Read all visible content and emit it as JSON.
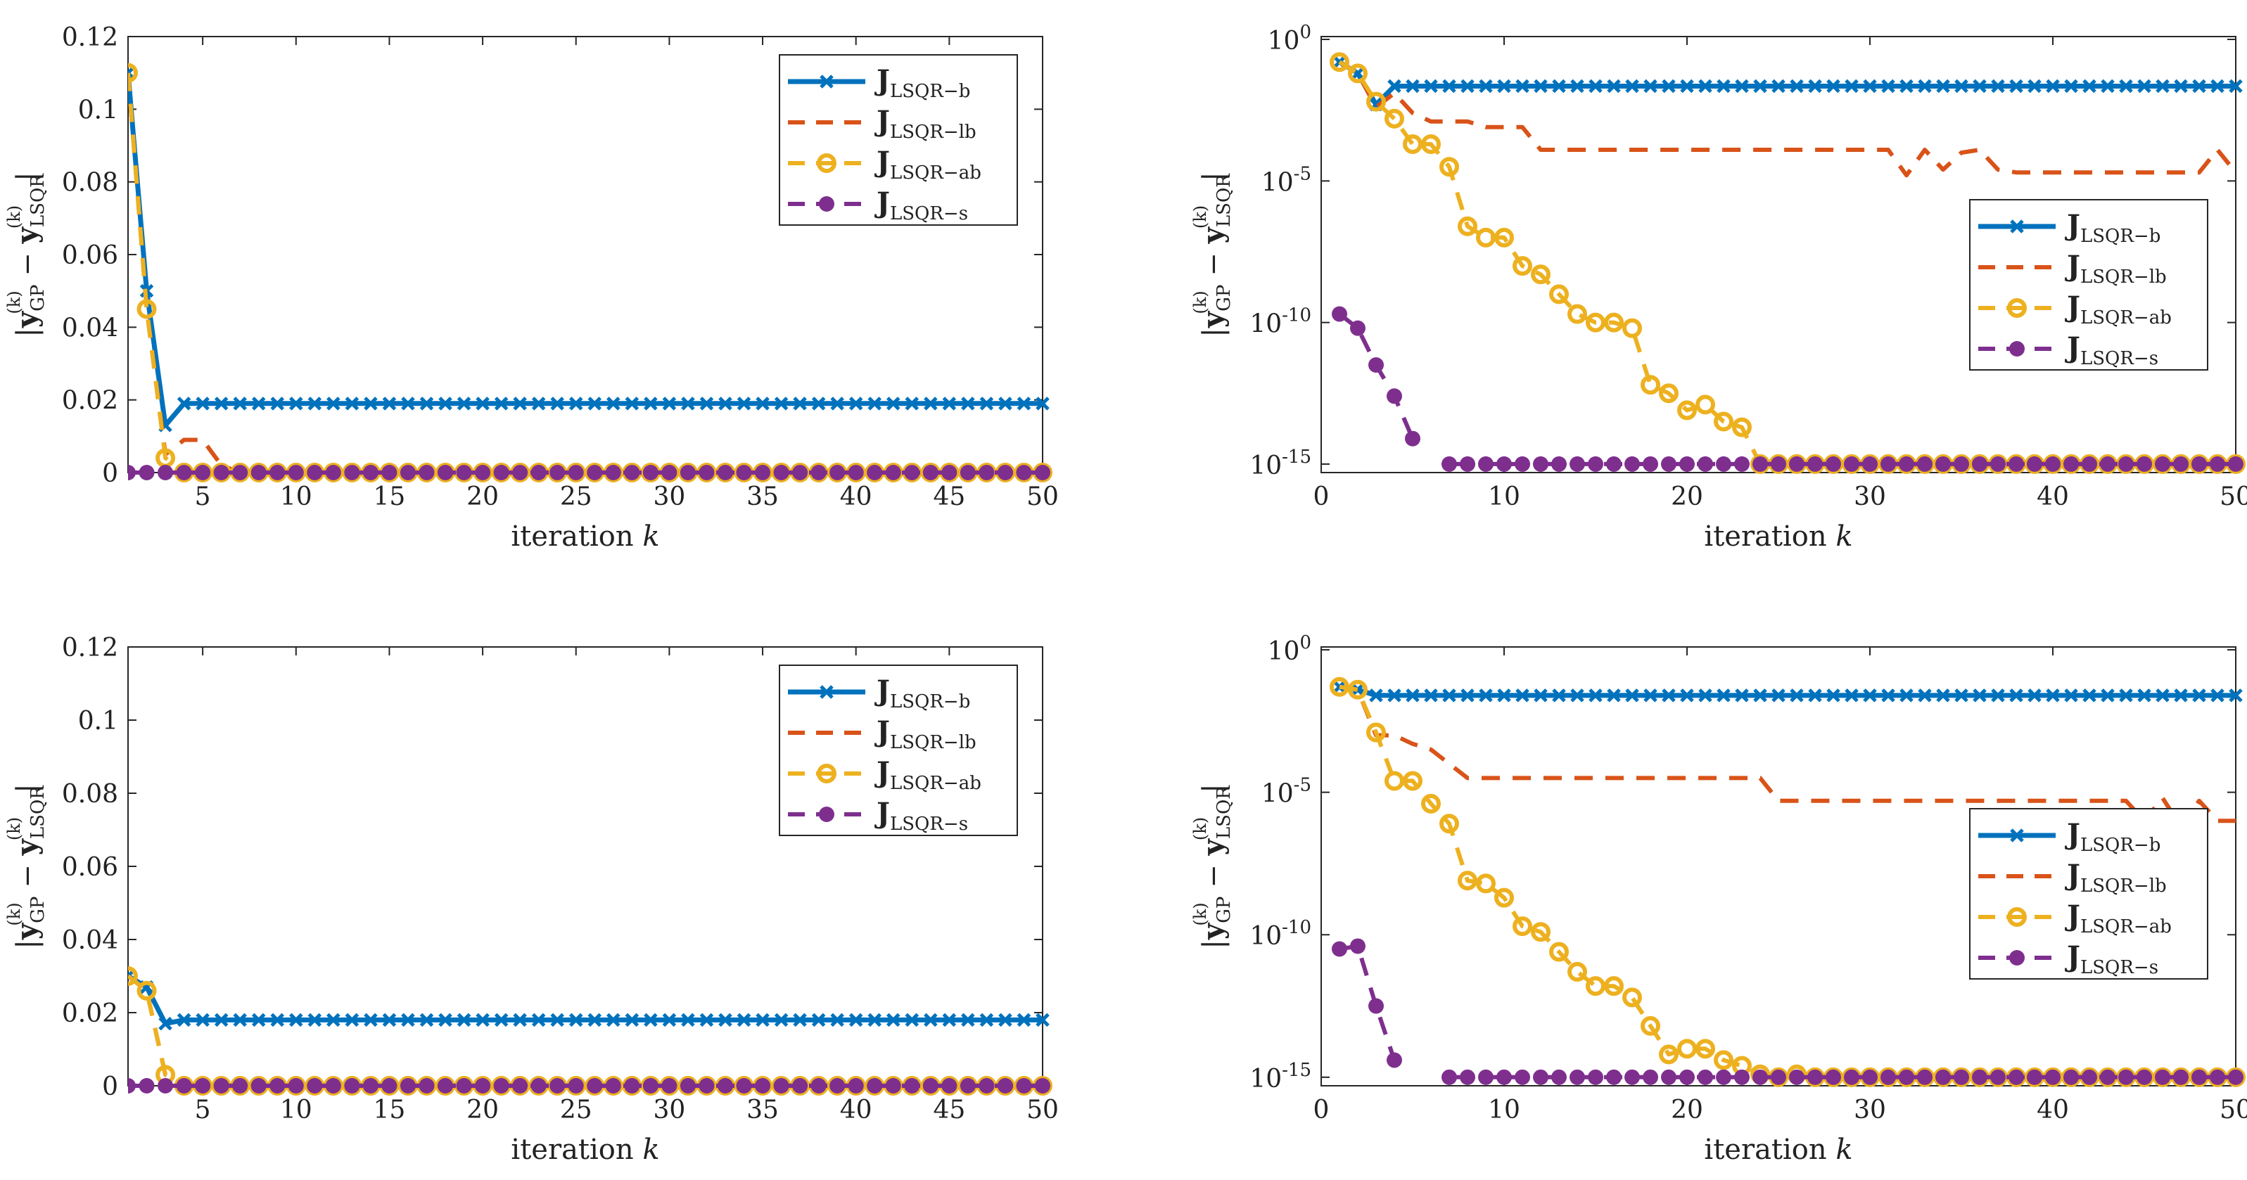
{
  "chart_data": [
    {
      "id": "tl",
      "type": "line",
      "yscale": "linear",
      "xlim": [
        1,
        50
      ],
      "xticks": [
        5,
        10,
        15,
        20,
        25,
        30,
        35,
        40,
        45,
        50
      ],
      "ylim": [
        0,
        0.12
      ],
      "yticks": [
        0,
        0.02,
        0.04,
        0.06,
        0.08,
        0.1,
        0.12
      ],
      "ytick_labels": [
        "0",
        "0.02",
        "0.04",
        "0.06",
        "0.08",
        "0.1",
        "0.12"
      ],
      "xlabel": "iteration k",
      "ylabel": "|y_GP^(k) − y_LSQR^(k)|",
      "legend_position": "top-right",
      "series": [
        {
          "key": "b",
          "name": "J_LSQR−b",
          "values": [
            0.11,
            0.05,
            0.013,
            0.019,
            0.019,
            0.019,
            0.019,
            0.019,
            0.019,
            0.019,
            0.019,
            0.019,
            0.019,
            0.019,
            0.019,
            0.019,
            0.019,
            0.019,
            0.019,
            0.019,
            0.019,
            0.019,
            0.019,
            0.019,
            0.019,
            0.019,
            0.019,
            0.019,
            0.019,
            0.019,
            0.019,
            0.019,
            0.019,
            0.019,
            0.019,
            0.019,
            0.019,
            0.019,
            0.019,
            0.019,
            0.019,
            0.019,
            0.019,
            0.019,
            0.019,
            0.019,
            0.019,
            0.019,
            0.019,
            0.019
          ]
        },
        {
          "key": "lb",
          "name": "J_LSQR−lb",
          "values": [
            0.11,
            0.045,
            0.005,
            0.009,
            0.009,
            0.002,
            0,
            0,
            0,
            0,
            0,
            0,
            0,
            0,
            0,
            0,
            0,
            0,
            0,
            0,
            0,
            0,
            0,
            0,
            0,
            0,
            0,
            0,
            0,
            0,
            0,
            0,
            0,
            0,
            0,
            0,
            0,
            0,
            0,
            0,
            0,
            0,
            0,
            0,
            0,
            0,
            0,
            0,
            0,
            0
          ]
        },
        {
          "key": "ab",
          "name": "J_LSQR−ab",
          "values": [
            0.11,
            0.045,
            0.004,
            0,
            0,
            0,
            0,
            0,
            0,
            0,
            0,
            0,
            0,
            0,
            0,
            0,
            0,
            0,
            0,
            0,
            0,
            0,
            0,
            0,
            0,
            0,
            0,
            0,
            0,
            0,
            0,
            0,
            0,
            0,
            0,
            0,
            0,
            0,
            0,
            0,
            0,
            0,
            0,
            0,
            0,
            0,
            0,
            0,
            0,
            0
          ]
        },
        {
          "key": "s",
          "name": "J_LSQR−s",
          "values": [
            0,
            0,
            0,
            0,
            0,
            0,
            0,
            0,
            0,
            0,
            0,
            0,
            0,
            0,
            0,
            0,
            0,
            0,
            0,
            0,
            0,
            0,
            0,
            0,
            0,
            0,
            0,
            0,
            0,
            0,
            0,
            0,
            0,
            0,
            0,
            0,
            0,
            0,
            0,
            0,
            0,
            0,
            0,
            0,
            0,
            0,
            0,
            0,
            0,
            0
          ]
        }
      ]
    },
    {
      "id": "tr",
      "type": "line",
      "yscale": "log",
      "xlim": [
        0,
        50
      ],
      "xticks": [
        0,
        10,
        20,
        30,
        40,
        50
      ],
      "ylim_log10": [
        -15.3,
        0.1
      ],
      "yticks_log10": [
        0,
        -5,
        -10,
        -15
      ],
      "ytick_labels": [
        "10^0",
        "10^-5",
        "10^-10",
        "10^-15"
      ],
      "xlabel": "iteration k",
      "ylabel": "|y_GP^(k) − y_LSQR^(k)|",
      "legend_position": "right-middle",
      "series": [
        {
          "key": "b",
          "name": "J_LSQR−b",
          "log10_values": [
            -0.8,
            -1.2,
            -2.3,
            -1.65,
            -1.65,
            -1.65,
            -1.65,
            -1.65,
            -1.65,
            -1.65,
            -1.65,
            -1.65,
            -1.65,
            -1.65,
            -1.65,
            -1.65,
            -1.65,
            -1.65,
            -1.65,
            -1.65,
            -1.65,
            -1.65,
            -1.65,
            -1.65,
            -1.65,
            -1.65,
            -1.65,
            -1.65,
            -1.65,
            -1.65,
            -1.65,
            -1.65,
            -1.65,
            -1.65,
            -1.65,
            -1.65,
            -1.65,
            -1.65,
            -1.65,
            -1.65,
            -1.65,
            -1.65,
            -1.65,
            -1.65,
            -1.65,
            -1.65,
            -1.65,
            -1.65,
            -1.65,
            -1.65
          ]
        },
        {
          "key": "lb",
          "name": "J_LSQR−lb",
          "log10_values": [
            -0.8,
            -1.2,
            -2.4,
            -1.9,
            -2.6,
            -2.9,
            -2.9,
            -2.9,
            -3.1,
            -3.1,
            -3.1,
            -3.9,
            -3.9,
            -3.9,
            -3.9,
            -3.9,
            -3.9,
            -3.9,
            -3.9,
            -3.9,
            -3.9,
            -3.9,
            -3.9,
            -3.9,
            -3.9,
            -3.9,
            -3.9,
            -3.9,
            -3.9,
            -3.9,
            -3.9,
            -4.8,
            -3.9,
            -4.6,
            -4.0,
            -3.9,
            -4.6,
            -4.7,
            -4.7,
            -4.7,
            -4.7,
            -4.7,
            -4.7,
            -4.7,
            -4.7,
            -4.7,
            -4.7,
            -4.7,
            -3.9,
            -4.7
          ]
        },
        {
          "key": "ab",
          "name": "J_LSQR−ab",
          "log10_values": [
            -0.8,
            -1.2,
            -2.2,
            -2.8,
            -3.7,
            -3.7,
            -4.5,
            -6.6,
            -7.0,
            -7.0,
            -8.0,
            -8.3,
            -9.0,
            -9.7,
            -10.0,
            -10.0,
            -10.2,
            -12.2,
            -12.5,
            -13.1,
            -12.9,
            -13.5,
            -13.7,
            -15,
            -15,
            -15,
            -15,
            -15,
            -15,
            -15,
            -15,
            -15,
            -15,
            -15,
            -15,
            -15,
            -15,
            -15,
            -15,
            -15,
            -15,
            -15,
            -15,
            -15,
            -15,
            -15,
            -15,
            -15,
            -15,
            -15
          ]
        },
        {
          "key": "s",
          "name": "J_LSQR−s",
          "log10_values": [
            -9.7,
            -10.2,
            -11.5,
            -12.6,
            -14.1,
            null,
            -15,
            -15,
            -15,
            -15,
            -15,
            -15,
            -15,
            -15,
            -15,
            -15,
            -15,
            -15,
            -15,
            -15,
            -15,
            -15,
            -15,
            -15,
            -15,
            -15,
            -15,
            -15,
            -15,
            -15,
            -15,
            -15,
            -15,
            -15,
            -15,
            -15,
            -15,
            -15,
            -15,
            -15,
            -15,
            -15,
            -15,
            -15,
            -15,
            -15,
            -15,
            -15,
            -15,
            -15
          ]
        }
      ]
    },
    {
      "id": "bl",
      "type": "line",
      "yscale": "linear",
      "xlim": [
        1,
        50
      ],
      "xticks": [
        5,
        10,
        15,
        20,
        25,
        30,
        35,
        40,
        45,
        50
      ],
      "ylim": [
        0,
        0.12
      ],
      "yticks": [
        0,
        0.02,
        0.04,
        0.06,
        0.08,
        0.1,
        0.12
      ],
      "ytick_labels": [
        "0",
        "0.02",
        "0.04",
        "0.06",
        "0.08",
        "0.1",
        "0.12"
      ],
      "xlabel": "iteration k",
      "ylabel": "|y_GP^(k) − y_LSQR^(k)|",
      "legend_position": "top-right",
      "series": [
        {
          "key": "b",
          "name": "J_LSQR−b",
          "values": [
            0.03,
            0.027,
            0.017,
            0.018,
            0.018,
            0.018,
            0.018,
            0.018,
            0.018,
            0.018,
            0.018,
            0.018,
            0.018,
            0.018,
            0.018,
            0.018,
            0.018,
            0.018,
            0.018,
            0.018,
            0.018,
            0.018,
            0.018,
            0.018,
            0.018,
            0.018,
            0.018,
            0.018,
            0.018,
            0.018,
            0.018,
            0.018,
            0.018,
            0.018,
            0.018,
            0.018,
            0.018,
            0.018,
            0.018,
            0.018,
            0.018,
            0.018,
            0.018,
            0.018,
            0.018,
            0.018,
            0.018,
            0.018,
            0.018,
            0.018
          ]
        },
        {
          "key": "lb",
          "name": "J_LSQR−lb",
          "values": [
            0.03,
            0.026,
            0.003,
            0.001,
            0,
            0,
            0,
            0,
            0,
            0,
            0,
            0,
            0,
            0,
            0,
            0,
            0,
            0,
            0,
            0,
            0,
            0,
            0,
            0,
            0,
            0,
            0,
            0,
            0,
            0,
            0,
            0,
            0,
            0,
            0,
            0,
            0,
            0,
            0,
            0,
            0,
            0,
            0,
            0,
            0,
            0,
            0,
            0,
            0,
            0
          ]
        },
        {
          "key": "ab",
          "name": "J_LSQR−ab",
          "values": [
            0.03,
            0.026,
            0.003,
            0,
            0,
            0,
            0,
            0,
            0,
            0,
            0,
            0,
            0,
            0,
            0,
            0,
            0,
            0,
            0,
            0,
            0,
            0,
            0,
            0,
            0,
            0,
            0,
            0,
            0,
            0,
            0,
            0,
            0,
            0,
            0,
            0,
            0,
            0,
            0,
            0,
            0,
            0,
            0,
            0,
            0,
            0,
            0,
            0,
            0,
            0
          ]
        },
        {
          "key": "s",
          "name": "J_LSQR−s",
          "values": [
            0,
            0,
            0,
            0,
            0,
            0,
            0,
            0,
            0,
            0,
            0,
            0,
            0,
            0,
            0,
            0,
            0,
            0,
            0,
            0,
            0,
            0,
            0,
            0,
            0,
            0,
            0,
            0,
            0,
            0,
            0,
            0,
            0,
            0,
            0,
            0,
            0,
            0,
            0,
            0,
            0,
            0,
            0,
            0,
            0,
            0,
            0,
            0,
            0,
            0
          ]
        }
      ]
    },
    {
      "id": "br",
      "type": "line",
      "yscale": "log",
      "xlim": [
        0,
        50
      ],
      "xticks": [
        0,
        10,
        20,
        30,
        40,
        50
      ],
      "ylim_log10": [
        -15.3,
        0.1
      ],
      "yticks_log10": [
        0,
        -5,
        -10,
        -15
      ],
      "ytick_labels": [
        "10^0",
        "10^-5",
        "10^-10",
        "10^-15"
      ],
      "xlabel": "iteration k",
      "ylabel": "|y_GP^(k) − y_LSQR^(k)|",
      "legend_position": "right-middle",
      "series": [
        {
          "key": "b",
          "name": "J_LSQR−b",
          "log10_values": [
            -1.3,
            -1.4,
            -1.6,
            -1.6,
            -1.6,
            -1.6,
            -1.6,
            -1.6,
            -1.6,
            -1.6,
            -1.6,
            -1.6,
            -1.6,
            -1.6,
            -1.6,
            -1.6,
            -1.6,
            -1.6,
            -1.6,
            -1.6,
            -1.6,
            -1.6,
            -1.6,
            -1.6,
            -1.6,
            -1.6,
            -1.6,
            -1.6,
            -1.6,
            -1.6,
            -1.6,
            -1.6,
            -1.6,
            -1.6,
            -1.6,
            -1.6,
            -1.6,
            -1.6,
            -1.6,
            -1.6,
            -1.6,
            -1.6,
            -1.6,
            -1.6,
            -1.6,
            -1.6,
            -1.6,
            -1.6,
            -1.6,
            -1.6
          ]
        },
        {
          "key": "lb",
          "name": "J_LSQR−lb",
          "log10_values": [
            -1.3,
            -1.4,
            -3.0,
            -3.0,
            -3.3,
            -3.5,
            -4.0,
            -4.5,
            -4.5,
            -4.5,
            -4.5,
            -4.5,
            -4.5,
            -4.5,
            -4.5,
            -4.5,
            -4.5,
            -4.5,
            -4.5,
            -4.5,
            -4.5,
            -4.5,
            -4.5,
            -4.5,
            -5.3,
            -5.3,
            -5.3,
            -5.3,
            -5.3,
            -5.3,
            -5.3,
            -5.3,
            -5.3,
            -5.3,
            -5.3,
            -5.3,
            -5.3,
            -5.3,
            -5.3,
            -5.3,
            -5.3,
            -5.3,
            -5.3,
            -5.3,
            -6.0,
            -5.2,
            -6.2,
            -5.3,
            -6.0,
            -6.0
          ]
        },
        {
          "key": "ab",
          "name": "J_LSQR−ab",
          "log10_values": [
            -1.3,
            -1.4,
            -2.9,
            -4.6,
            -4.6,
            -5.4,
            -6.1,
            -8.1,
            -8.2,
            -8.7,
            -9.7,
            -9.9,
            -10.6,
            -11.3,
            -11.8,
            -11.8,
            -12.2,
            -13.2,
            -14.2,
            -14.0,
            -14.0,
            -14.4,
            -14.6,
            -14.9,
            -15,
            -14.9,
            -15,
            -15,
            -15,
            -15,
            -15,
            -15,
            -15,
            -15,
            -15,
            -15,
            -15,
            -15,
            -15,
            -15,
            -15,
            -15,
            -15,
            -15,
            -15,
            -15,
            -15,
            -15,
            -15,
            -15
          ]
        },
        {
          "key": "s",
          "name": "J_LSQR−s",
          "log10_values": [
            -10.5,
            -10.4,
            -12.5,
            -14.4,
            null,
            null,
            -15,
            -15,
            -15,
            -15,
            -15,
            -15,
            -15,
            -15,
            -15,
            -15,
            -15,
            -15,
            -15,
            -15,
            -15,
            -15,
            -15,
            -15,
            -15,
            -15,
            -15,
            -15,
            -15,
            -15,
            -15,
            -15,
            -15,
            -15,
            -15,
            -15,
            -15,
            -15,
            -15,
            -15,
            -15,
            -15,
            -15,
            -15,
            -15,
            -15,
            -15,
            -15,
            -15,
            -15
          ]
        }
      ]
    }
  ],
  "legend": {
    "b": {
      "main": "J",
      "sub": "LSQR−b"
    },
    "lb": {
      "main": "J",
      "sub": "LSQR−lb"
    },
    "ab": {
      "main": "J",
      "sub": "LSQR−ab"
    },
    "s": {
      "main": "J",
      "sub": "LSQR−s"
    }
  },
  "labels": {
    "xlabel_text": "iteration ",
    "xlabel_var": "k",
    "ylabel_bar": "|",
    "ylabel_y": "y",
    "ylabel_gp": "GP",
    "ylabel_lsqr": "LSQR",
    "ylabel_k": "(k)",
    "ylabel_minus": " − "
  },
  "colors": {
    "b": "#0072BD",
    "lb": "#D95319",
    "ab": "#EDB120",
    "s": "#7E2F8E",
    "axis": "#262626"
  }
}
